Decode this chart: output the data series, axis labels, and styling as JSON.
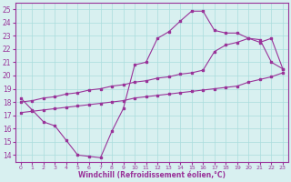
{
  "curve1_x": [
    0,
    1,
    2,
    3,
    4,
    5,
    6,
    7,
    8,
    9,
    10,
    11,
    12,
    13,
    14,
    15,
    16,
    17,
    18,
    19,
    20,
    21,
    22,
    23
  ],
  "curve1_y": [
    18.3,
    17.4,
    16.5,
    16.2,
    15.1,
    14.0,
    13.9,
    13.8,
    15.8,
    17.5,
    20.8,
    21.0,
    22.8,
    23.3,
    24.1,
    24.85,
    24.85,
    23.4,
    23.2,
    23.2,
    22.8,
    22.7,
    21.0,
    20.5
  ],
  "curve2_x": [
    0,
    1,
    2,
    3,
    4,
    5,
    6,
    7,
    8,
    9,
    10,
    11,
    12,
    13,
    14,
    15,
    16,
    17,
    18,
    19,
    20,
    21,
    22,
    23
  ],
  "curve2_y": [
    18.0,
    18.1,
    18.3,
    18.4,
    18.6,
    18.7,
    18.9,
    19.0,
    19.2,
    19.3,
    19.5,
    19.6,
    19.8,
    19.9,
    20.1,
    20.2,
    20.4,
    21.8,
    22.3,
    22.5,
    22.8,
    22.5,
    22.8,
    20.5
  ],
  "curve3_x": [
    0,
    1,
    2,
    3,
    4,
    5,
    6,
    7,
    8,
    9,
    10,
    11,
    12,
    13,
    14,
    15,
    16,
    17,
    18,
    19,
    20,
    21,
    22,
    23
  ],
  "curve3_y": [
    17.2,
    17.3,
    17.4,
    17.5,
    17.6,
    17.7,
    17.8,
    17.9,
    18.0,
    18.1,
    18.3,
    18.4,
    18.5,
    18.6,
    18.7,
    18.8,
    18.9,
    19.0,
    19.1,
    19.2,
    19.5,
    19.7,
    19.9,
    20.2
  ],
  "color": "#993399",
  "bg_color": "#d8f0f0",
  "grid_color": "#aadddd",
  "xlabel": "Windchill (Refroidissement éolien,°C)",
  "xlim": [
    -0.5,
    23.5
  ],
  "ylim": [
    13.5,
    25.5
  ],
  "yticks": [
    14,
    15,
    16,
    17,
    18,
    19,
    20,
    21,
    22,
    23,
    24,
    25
  ],
  "xticks": [
    0,
    1,
    2,
    3,
    4,
    5,
    6,
    7,
    8,
    9,
    10,
    11,
    12,
    13,
    14,
    15,
    16,
    17,
    18,
    19,
    20,
    21,
    22,
    23
  ]
}
